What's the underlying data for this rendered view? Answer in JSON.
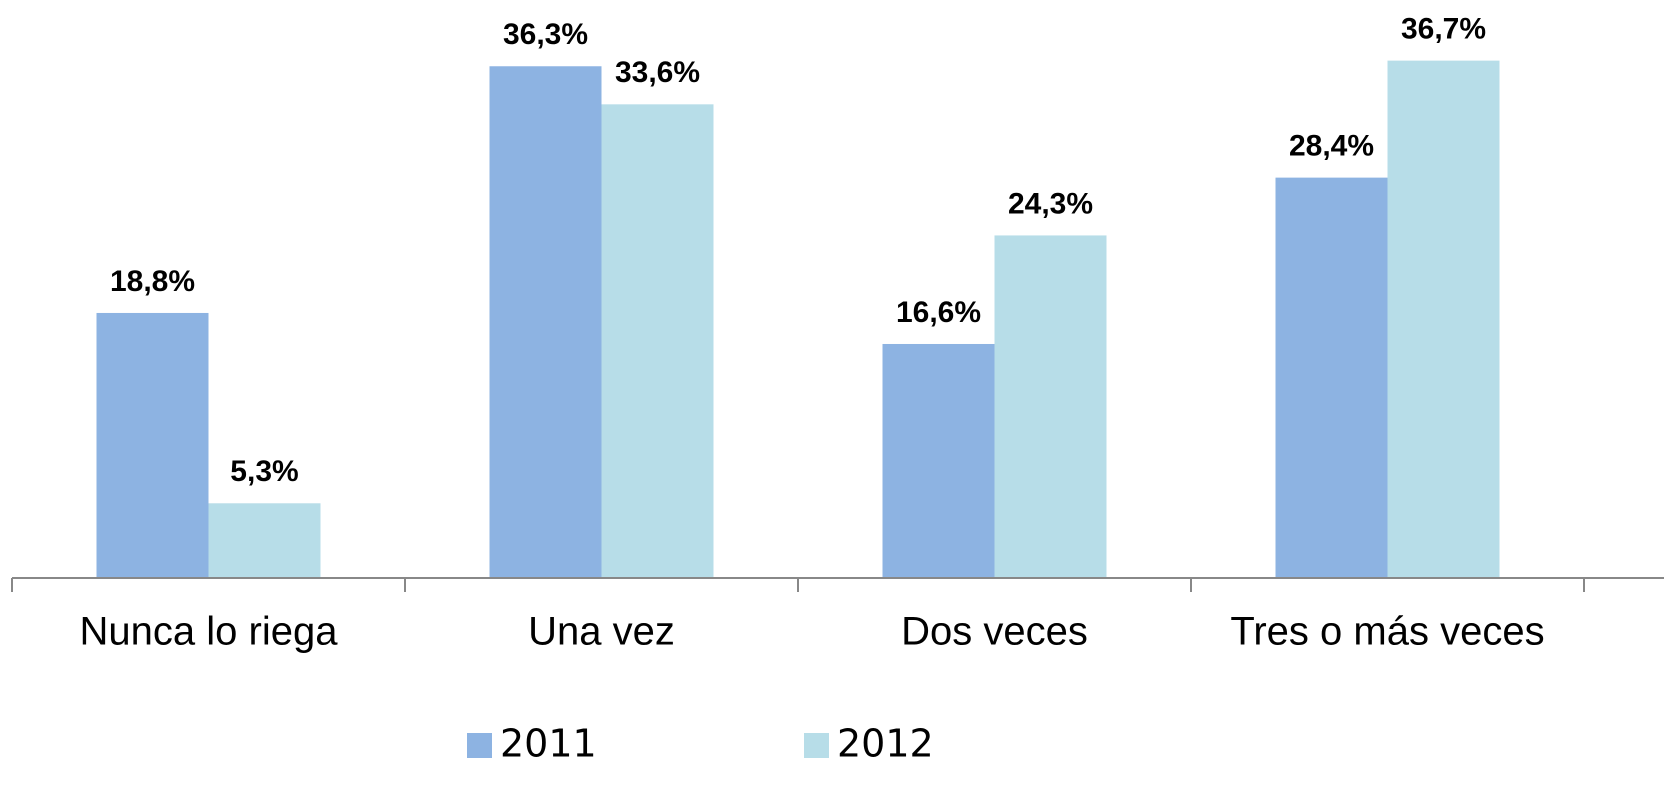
{
  "chart_data": {
    "type": "bar",
    "categories": [
      "Nunca lo riega",
      "Una vez",
      "Dos veces",
      "Tres o más veces"
    ],
    "series": [
      {
        "name": "2011",
        "color": "#8db3e2",
        "values": [
          18.8,
          36.3,
          16.6,
          28.4
        ],
        "value_labels": [
          "18,8%",
          "36,3%",
          "16,6%",
          "28,4%"
        ]
      },
      {
        "name": "2012",
        "color": "#b7dde8",
        "values": [
          5.3,
          33.6,
          24.3,
          36.7
        ],
        "value_labels": [
          "5,3%",
          "33,6%",
          "24,3%",
          "36,7%"
        ]
      }
    ],
    "ylim": [
      0,
      41
    ],
    "grid": false,
    "legend": "bottom"
  }
}
